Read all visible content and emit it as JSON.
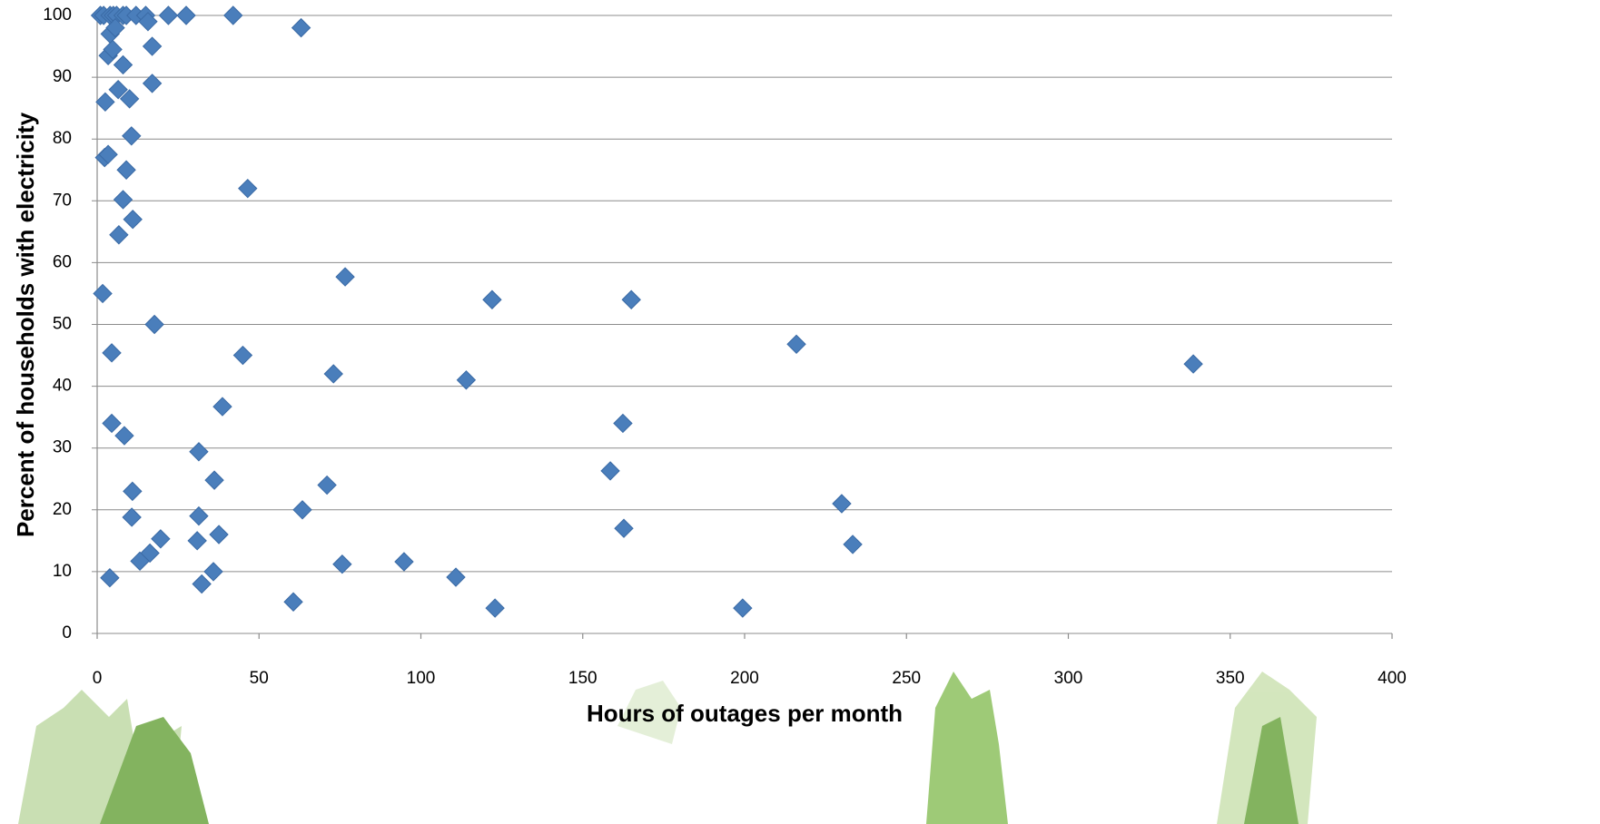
{
  "chart_data": {
    "type": "scatter",
    "x_label": "Hours of outages per month",
    "y_label": "Percent of households with electricity",
    "color": "#4a7ebb",
    "grid": true,
    "xlim": [
      0,
      400
    ],
    "xticks": [
      0,
      50,
      100,
      150,
      200,
      250,
      300,
      350,
      400
    ],
    "ylim": [
      0,
      100
    ],
    "yticks": [
      0,
      10,
      20,
      30,
      40,
      50,
      60,
      70,
      80,
      90,
      100
    ],
    "x": [
      1,
      2,
      4,
      5,
      6,
      8,
      9,
      12,
      15,
      22,
      27.5,
      42,
      15.7,
      63,
      4,
      5.6,
      3.4,
      4.8,
      17,
      8,
      6.5,
      2.5,
      10,
      17,
      10.6,
      2.3,
      3.4,
      9,
      8,
      11,
      6.7,
      46.5,
      1.7,
      76.6,
      122,
      165,
      17.7,
      4.5,
      45,
      216,
      338.6,
      73,
      114,
      38.7,
      4.5,
      162.4,
      8.4,
      31.4,
      36.2,
      158.5,
      10.9,
      71,
      63.4,
      230,
      10.7,
      31.4,
      19.6,
      30.9,
      37.6,
      162.7,
      233.4,
      16.3,
      13.2,
      75.7,
      94.8,
      35.9,
      110.8,
      3.9,
      32.3,
      60.6,
      122.9,
      199.4
    ],
    "values": [
      100,
      100,
      100,
      100,
      100,
      100,
      100,
      100,
      100,
      100,
      100,
      100,
      99,
      98,
      97,
      98,
      93.5,
      94.5,
      95,
      92,
      88,
      86,
      86.5,
      89,
      80.5,
      77,
      77.5,
      75,
      70.2,
      67,
      64.5,
      72,
      55,
      57.7,
      54,
      54,
      50,
      45.4,
      45,
      46.8,
      43.6,
      42,
      41,
      36.7,
      34,
      34,
      32,
      29.4,
      24.8,
      26.3,
      23,
      24,
      20,
      21,
      18.8,
      19,
      15.3,
      15,
      16,
      17,
      14.4,
      13,
      11.7,
      11.2,
      11.6,
      10,
      9.1,
      9,
      8,
      5.1,
      4.1,
      4.1
    ]
  }
}
